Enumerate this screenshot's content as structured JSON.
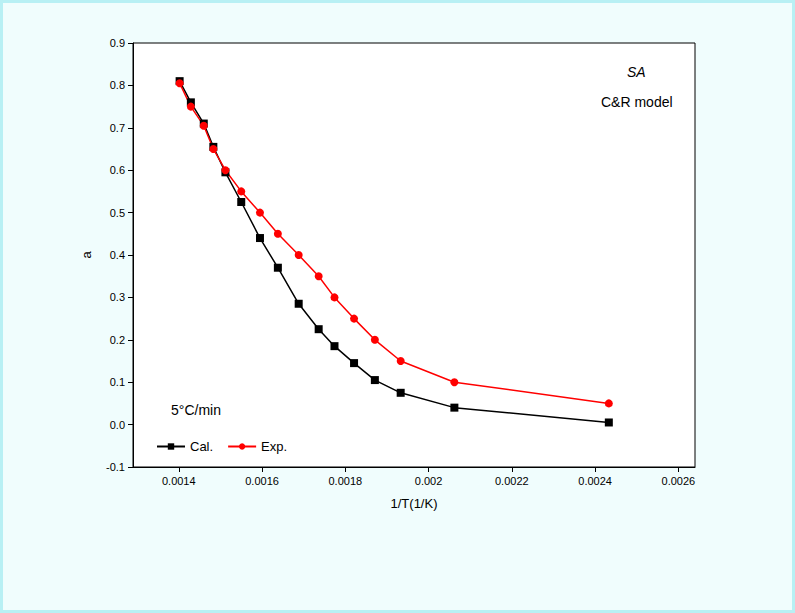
{
  "chart_data": {
    "type": "line",
    "x_label": "1/T(1/K)",
    "y_label": "a",
    "annotations": [
      "SA",
      "C&R model",
      "5°C/min"
    ],
    "x": [
      0.001402,
      0.001429,
      0.00146,
      0.001483,
      0.001512,
      0.00155,
      0.001595,
      0.001638,
      0.001688,
      0.001736,
      0.001774,
      0.001821,
      0.001871,
      0.001933,
      0.002062,
      0.002433
    ],
    "series": [
      {
        "name": "Cal.",
        "color": "#000000",
        "marker": "square",
        "line_style": "solid",
        "values": [
          0.81,
          0.76,
          0.71,
          0.655,
          0.595,
          0.525,
          0.44,
          0.37,
          0.285,
          0.225,
          0.185,
          0.145,
          0.105,
          0.075,
          0.04,
          0.005
        ]
      },
      {
        "name": "Exp.",
        "color": "#ff0000",
        "marker": "circle",
        "line_style": "solid",
        "values": [
          0.805,
          0.75,
          0.705,
          0.65,
          0.6,
          0.55,
          0.5,
          0.45,
          0.4,
          0.35,
          0.3,
          0.25,
          0.2,
          0.15,
          0.1,
          0.05
        ]
      }
    ],
    "xlim": [
      0.00129,
      0.00264
    ],
    "xticks": [
      0.0014,
      0.0016,
      0.0018,
      0.002,
      0.0022,
      0.0024,
      0.0026
    ],
    "ylim": [
      -0.1,
      0.9
    ],
    "yticks": [
      -0.1,
      {
        "value": 0,
        "label": "0.0"
      },
      0.1,
      0.2,
      0.3,
      0.4,
      0.5,
      0.6,
      0.7,
      0.8,
      0.9
    ],
    "legend": "lower left",
    "grid": false
  }
}
